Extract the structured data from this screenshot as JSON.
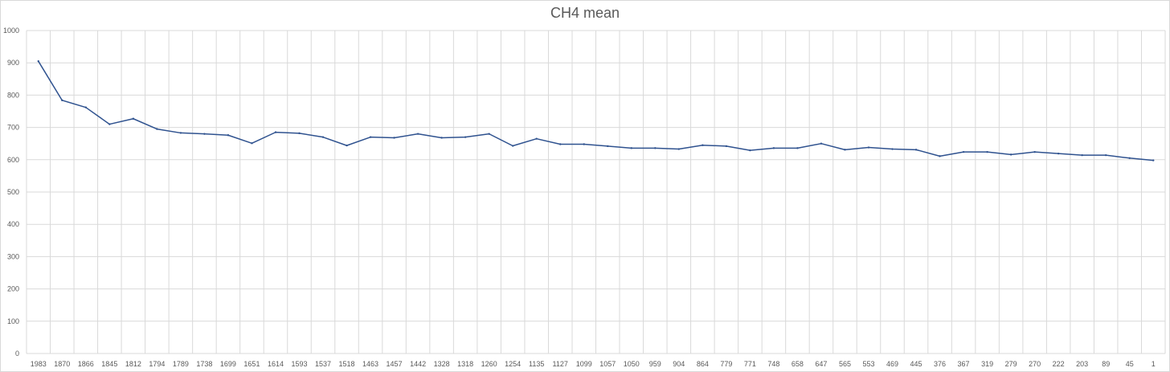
{
  "chart_data": {
    "type": "line",
    "title": "CH4 mean",
    "xlabel": "",
    "ylabel": "",
    "ylim": [
      0,
      1000
    ],
    "yticks": [
      0,
      100,
      200,
      300,
      400,
      500,
      600,
      700,
      800,
      900,
      1000
    ],
    "grid": true,
    "legend": "none",
    "line_color": "#2f528f",
    "categories": [
      "1983",
      "1870",
      "1866",
      "1845",
      "1812",
      "1794",
      "1789",
      "1738",
      "1699",
      "1651",
      "1614",
      "1593",
      "1537",
      "1518",
      "1463",
      "1457",
      "1442",
      "1328",
      "1318",
      "1260",
      "1254",
      "1135",
      "1127",
      "1099",
      "1057",
      "1050",
      "959",
      "904",
      "864",
      "779",
      "771",
      "748",
      "658",
      "647",
      "565",
      "553",
      "469",
      "445",
      "376",
      "367",
      "319",
      "279",
      "270",
      "222",
      "203",
      "89",
      "45",
      "1"
    ],
    "series": [
      {
        "values": [
          905,
          784,
          762,
          710,
          727,
          695,
          683,
          680,
          676,
          651,
          685,
          682,
          670,
          644,
          670,
          668,
          680,
          668,
          670,
          680,
          643,
          665,
          648,
          648,
          642,
          636,
          636,
          633,
          645,
          642,
          629,
          636,
          636,
          650,
          631,
          638,
          633,
          631,
          611,
          624,
          624,
          616,
          624,
          619,
          614,
          614,
          605,
          598
        ]
      }
    ]
  }
}
